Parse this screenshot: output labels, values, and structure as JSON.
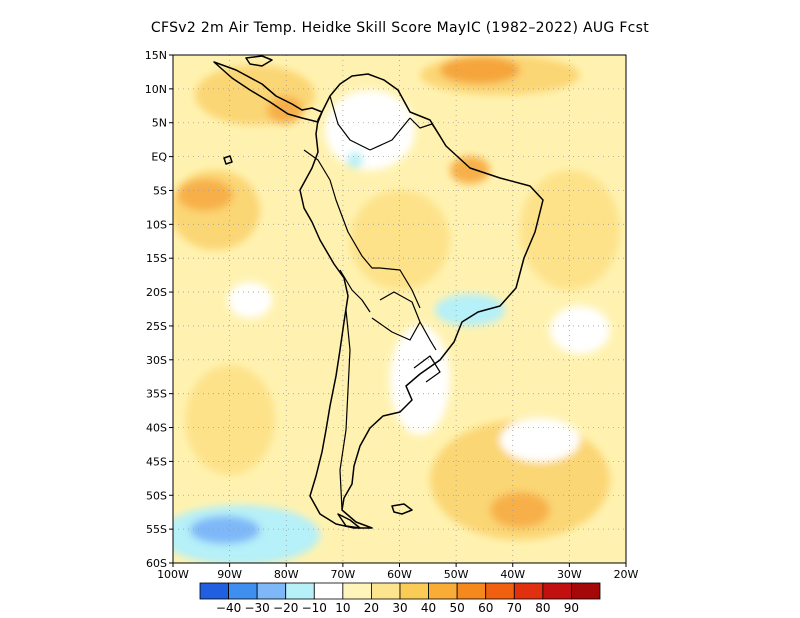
{
  "title": "CFSv2  2m Air Temp. Heidke Skill Score MayIC (1982–2022) AUG Fcst",
  "map": {
    "lon_range": [
      -100,
      -20
    ],
    "lat_range": [
      -60,
      15
    ],
    "lat_ticks": [
      {
        "value": 15,
        "label": "15N"
      },
      {
        "value": 10,
        "label": "10N"
      },
      {
        "value": 5,
        "label": "5N"
      },
      {
        "value": 0,
        "label": "EQ"
      },
      {
        "value": -5,
        "label": "5S"
      },
      {
        "value": -10,
        "label": "10S"
      },
      {
        "value": -15,
        "label": "15S"
      },
      {
        "value": -20,
        "label": "20S"
      },
      {
        "value": -25,
        "label": "25S"
      },
      {
        "value": -30,
        "label": "30S"
      },
      {
        "value": -35,
        "label": "35S"
      },
      {
        "value": -40,
        "label": "40S"
      },
      {
        "value": -45,
        "label": "45S"
      },
      {
        "value": -50,
        "label": "50S"
      },
      {
        "value": -55,
        "label": "55S"
      },
      {
        "value": -60,
        "label": "60S"
      }
    ],
    "lon_ticks": [
      {
        "value": -100,
        "label": "100W"
      },
      {
        "value": -90,
        "label": "90W"
      },
      {
        "value": -80,
        "label": "80W"
      },
      {
        "value": -70,
        "label": "70W"
      },
      {
        "value": -60,
        "label": "60W"
      },
      {
        "value": -50,
        "label": "50W"
      },
      {
        "value": -40,
        "label": "40W"
      },
      {
        "value": -30,
        "label": "30W"
      },
      {
        "value": -20,
        "label": "20W"
      }
    ],
    "colorbar": {
      "colors": [
        "#1f5fe0",
        "#3f8ff0",
        "#7fb8f8",
        "#b6f0f8",
        "#ffffff",
        "#fff5ba",
        "#fde58f",
        "#fbcb58",
        "#f9ad36",
        "#f5891e",
        "#f06010",
        "#e03010",
        "#c21010",
        "#a40808"
      ],
      "labels": [
        "−40",
        "−30",
        "−20",
        "−10",
        "10",
        "20",
        "30",
        "40",
        "50",
        "60",
        "70",
        "80",
        "90"
      ]
    }
  }
}
